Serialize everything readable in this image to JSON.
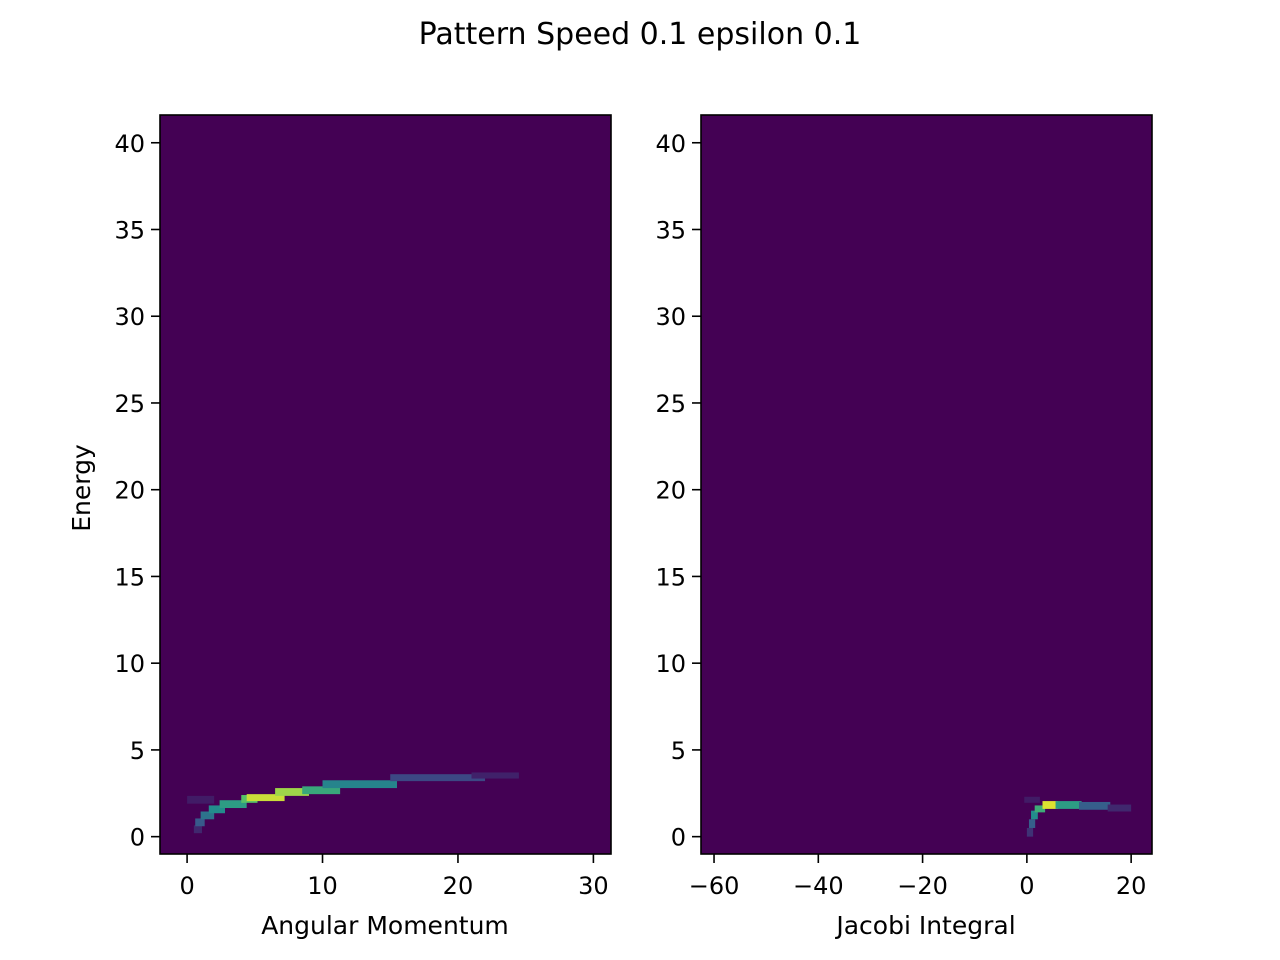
{
  "figure_title": "Pattern Speed 0.1 epsilon 0.1",
  "colormap": [
    "#440154",
    "#3b528b",
    "#21918c",
    "#5ec962",
    "#fde725"
  ],
  "chart_data": [
    {
      "type": "heatmap",
      "title": "",
      "xlabel": "Angular Momentum",
      "ylabel": "Energy",
      "xlim": [
        -2,
        31.3
      ],
      "ylim": [
        -1,
        41.6
      ],
      "xticks": [
        0,
        10,
        20,
        30
      ],
      "xtick_labels": [
        "0",
        "10",
        "20",
        "30"
      ],
      "yticks": [
        0,
        5,
        10,
        15,
        20,
        25,
        30,
        35,
        40
      ],
      "ytick_labels": [
        "0",
        "5",
        "10",
        "15",
        "20",
        "25",
        "30",
        "35",
        "40"
      ],
      "background": "#440154",
      "cells": [
        {
          "x": 0.0,
          "y": 1.9,
          "w": 2.0,
          "h": 0.45,
          "v": 0.08
        },
        {
          "x": 0.5,
          "y": 0.2,
          "w": 0.6,
          "h": 0.45,
          "v": 0.12
        },
        {
          "x": 0.6,
          "y": 0.6,
          "w": 0.7,
          "h": 0.45,
          "v": 0.28
        },
        {
          "x": 1.0,
          "y": 1.0,
          "w": 1.0,
          "h": 0.45,
          "v": 0.38
        },
        {
          "x": 1.6,
          "y": 1.35,
          "w": 1.2,
          "h": 0.45,
          "v": 0.48
        },
        {
          "x": 2.4,
          "y": 1.65,
          "w": 2.0,
          "h": 0.45,
          "v": 0.55
        },
        {
          "x": 4.0,
          "y": 1.95,
          "w": 1.2,
          "h": 0.45,
          "v": 0.72
        },
        {
          "x": 4.4,
          "y": 2.05,
          "w": 2.8,
          "h": 0.4,
          "v": 0.92
        },
        {
          "x": 6.5,
          "y": 2.35,
          "w": 2.5,
          "h": 0.45,
          "v": 0.85
        },
        {
          "x": 8.5,
          "y": 2.45,
          "w": 2.8,
          "h": 0.45,
          "v": 0.6
        },
        {
          "x": 10.0,
          "y": 2.8,
          "w": 5.5,
          "h": 0.45,
          "v": 0.45
        },
        {
          "x": 15.0,
          "y": 3.2,
          "w": 7.0,
          "h": 0.4,
          "v": 0.22
        },
        {
          "x": 21.0,
          "y": 3.35,
          "w": 3.5,
          "h": 0.35,
          "v": 0.1
        }
      ]
    },
    {
      "type": "heatmap",
      "title": "",
      "xlabel": "Jacobi Integral",
      "ylabel": "",
      "xlim": [
        -62.5,
        24
      ],
      "ylim": [
        -1,
        41.6
      ],
      "xticks": [
        -60,
        -40,
        -20,
        0,
        20
      ],
      "xtick_labels": [
        "−60",
        "−40",
        "−20",
        "0",
        "20"
      ],
      "yticks": [
        0,
        5,
        10,
        15,
        20,
        25,
        30,
        35,
        40
      ],
      "ytick_labels": [
        "0",
        "5",
        "10",
        "15",
        "20",
        "25",
        "30",
        "35",
        "40"
      ],
      "background": "#440154",
      "cells": [
        {
          "x": -0.5,
          "y": 1.95,
          "w": 3.0,
          "h": 0.35,
          "v": 0.08
        },
        {
          "x": 0.0,
          "y": 0.0,
          "w": 1.2,
          "h": 0.5,
          "v": 0.15
        },
        {
          "x": 0.4,
          "y": 0.5,
          "w": 1.2,
          "h": 0.5,
          "v": 0.3
        },
        {
          "x": 0.8,
          "y": 1.0,
          "w": 1.3,
          "h": 0.5,
          "v": 0.48
        },
        {
          "x": 1.5,
          "y": 1.4,
          "w": 2.0,
          "h": 0.4,
          "v": 0.62
        },
        {
          "x": 3.0,
          "y": 1.6,
          "w": 3.0,
          "h": 0.45,
          "v": 0.95
        },
        {
          "x": 5.5,
          "y": 1.6,
          "w": 5.0,
          "h": 0.45,
          "v": 0.55
        },
        {
          "x": 10.0,
          "y": 1.55,
          "w": 6.0,
          "h": 0.45,
          "v": 0.3
        },
        {
          "x": 15.5,
          "y": 1.45,
          "w": 4.5,
          "h": 0.4,
          "v": 0.12
        }
      ]
    }
  ]
}
